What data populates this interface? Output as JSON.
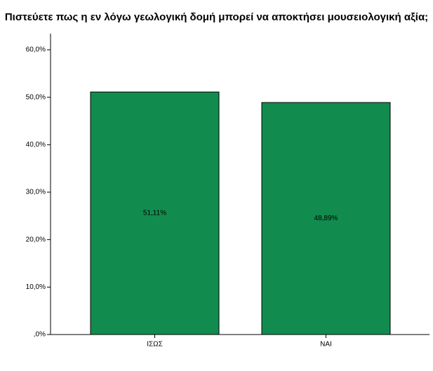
{
  "chart_data": {
    "type": "bar",
    "title": "Πιστεύετε πως η εν λόγω γεωλογική δομή μπορεί να αποκτήσει μουσειολογική αξία;",
    "categories": [
      "ΙΣΩΣ",
      "ΝΑΙ"
    ],
    "values": [
      51.11,
      48.89
    ],
    "value_labels": [
      "51,11%",
      "48,89%"
    ],
    "color": "#118c4e",
    "ylim": [
      0,
      60
    ],
    "yticks": [
      {
        "value": 0,
        "label": ",0%"
      },
      {
        "value": 10,
        "label": "10,0%"
      },
      {
        "value": 20,
        "label": "20,0%"
      },
      {
        "value": 30,
        "label": "30,0%"
      },
      {
        "value": 40,
        "label": "40,0%"
      },
      {
        "value": 50,
        "label": "50,0%"
      },
      {
        "value": 60,
        "label": "60,0%"
      }
    ]
  }
}
